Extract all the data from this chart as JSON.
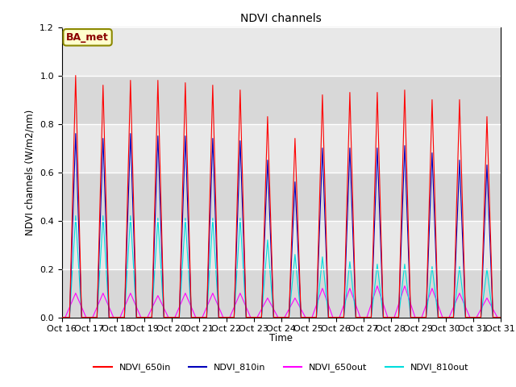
{
  "title": "NDVI channels",
  "xlabel": "Time",
  "ylabel": "NDVI channels (W/m2/nm)",
  "ylim": [
    0,
    1.2
  ],
  "annotation": "BA_met",
  "legend_labels": [
    "NDVI_650in",
    "NDVI_810in",
    "NDVI_650out",
    "NDVI_810out"
  ],
  "legend_colors": [
    "#ff0000",
    "#0000bb",
    "#ff00ff",
    "#00dddd"
  ],
  "bg_color": "#e8e8e8",
  "xtick_labels": [
    "Oct 16",
    "Oct 17",
    "Oct 18",
    "Oct 19",
    "Oct 20",
    "Oct 21",
    "Oct 22",
    "Oct 23",
    "Oct 24",
    "Oct 25",
    "Oct 26",
    "Oct 27",
    "Oct 28",
    "Oct 29",
    "Oct 30",
    "Oct 31"
  ],
  "peak_650in": [
    1.0,
    0.96,
    0.98,
    0.98,
    0.97,
    0.96,
    0.94,
    0.83,
    0.74,
    0.92,
    0.93,
    0.93,
    0.94,
    0.9,
    0.9,
    0.83
  ],
  "peak_810in": [
    0.76,
    0.74,
    0.76,
    0.75,
    0.75,
    0.74,
    0.73,
    0.65,
    0.56,
    0.7,
    0.7,
    0.7,
    0.71,
    0.68,
    0.65,
    0.63
  ],
  "peak_650out": [
    0.1,
    0.1,
    0.1,
    0.09,
    0.1,
    0.1,
    0.1,
    0.08,
    0.08,
    0.12,
    0.12,
    0.13,
    0.13,
    0.12,
    0.1,
    0.08
  ],
  "peak_810out": [
    0.42,
    0.42,
    0.42,
    0.41,
    0.41,
    0.41,
    0.41,
    0.32,
    0.26,
    0.25,
    0.23,
    0.22,
    0.22,
    0.21,
    0.21,
    0.2
  ],
  "figsize": [
    6.4,
    4.8
  ],
  "dpi": 100,
  "points_per_day": 200
}
